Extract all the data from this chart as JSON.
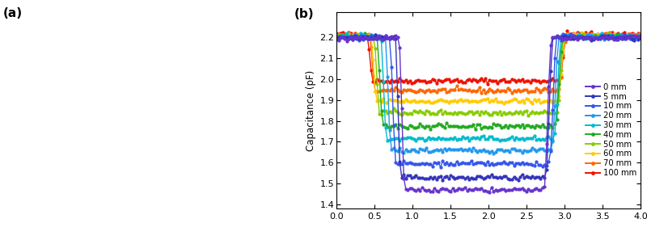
{
  "title_b": "(b)",
  "xlabel": "",
  "ylabel": "Capacitance (pF)",
  "xlim": [
    0.0,
    4.0
  ],
  "ylim": [
    1.38,
    2.32
  ],
  "yticks": [
    1.4,
    1.5,
    1.6,
    1.7,
    1.8,
    1.9,
    2.0,
    2.1,
    2.2
  ],
  "xticks": [
    0.0,
    0.5,
    1.0,
    1.5,
    2.0,
    2.5,
    3.0,
    3.5,
    4.0
  ],
  "series": [
    {
      "label": "0 mm",
      "color": "#6633cc",
      "baseline": 2.197,
      "dip": 1.47,
      "start": 0.9,
      "end": 2.73
    },
    {
      "label": "5 mm",
      "color": "#3333bb",
      "baseline": 2.198,
      "dip": 1.53,
      "start": 0.85,
      "end": 2.75
    },
    {
      "label": "10 mm",
      "color": "#3355ee",
      "baseline": 2.2,
      "dip": 1.595,
      "start": 0.78,
      "end": 2.8
    },
    {
      "label": "20 mm",
      "color": "#2299ee",
      "baseline": 2.2,
      "dip": 1.66,
      "start": 0.72,
      "end": 2.83
    },
    {
      "label": "30 mm",
      "color": "#00bbcc",
      "baseline": 2.202,
      "dip": 1.715,
      "start": 0.66,
      "end": 2.86
    },
    {
      "label": "40 mm",
      "color": "#22aa22",
      "baseline": 2.204,
      "dip": 1.775,
      "start": 0.61,
      "end": 2.88
    },
    {
      "label": "50 mm",
      "color": "#88cc00",
      "baseline": 2.205,
      "dip": 1.84,
      "start": 0.57,
      "end": 2.9
    },
    {
      "label": "60 mm",
      "color": "#ffcc00",
      "baseline": 2.207,
      "dip": 1.895,
      "start": 0.53,
      "end": 2.91
    },
    {
      "label": "70 mm",
      "color": "#ff6600",
      "baseline": 2.21,
      "dip": 1.945,
      "start": 0.51,
      "end": 2.92
    },
    {
      "label": "100 mm",
      "color": "#ee1100",
      "baseline": 2.215,
      "dip": 1.992,
      "start": 0.48,
      "end": 2.93
    }
  ],
  "noise_amp": 0.006,
  "marker": "o",
  "markersize": 2.8,
  "linewidth": 1.0,
  "fig_width": 8.0,
  "fig_height": 2.97,
  "dpi": 100
}
